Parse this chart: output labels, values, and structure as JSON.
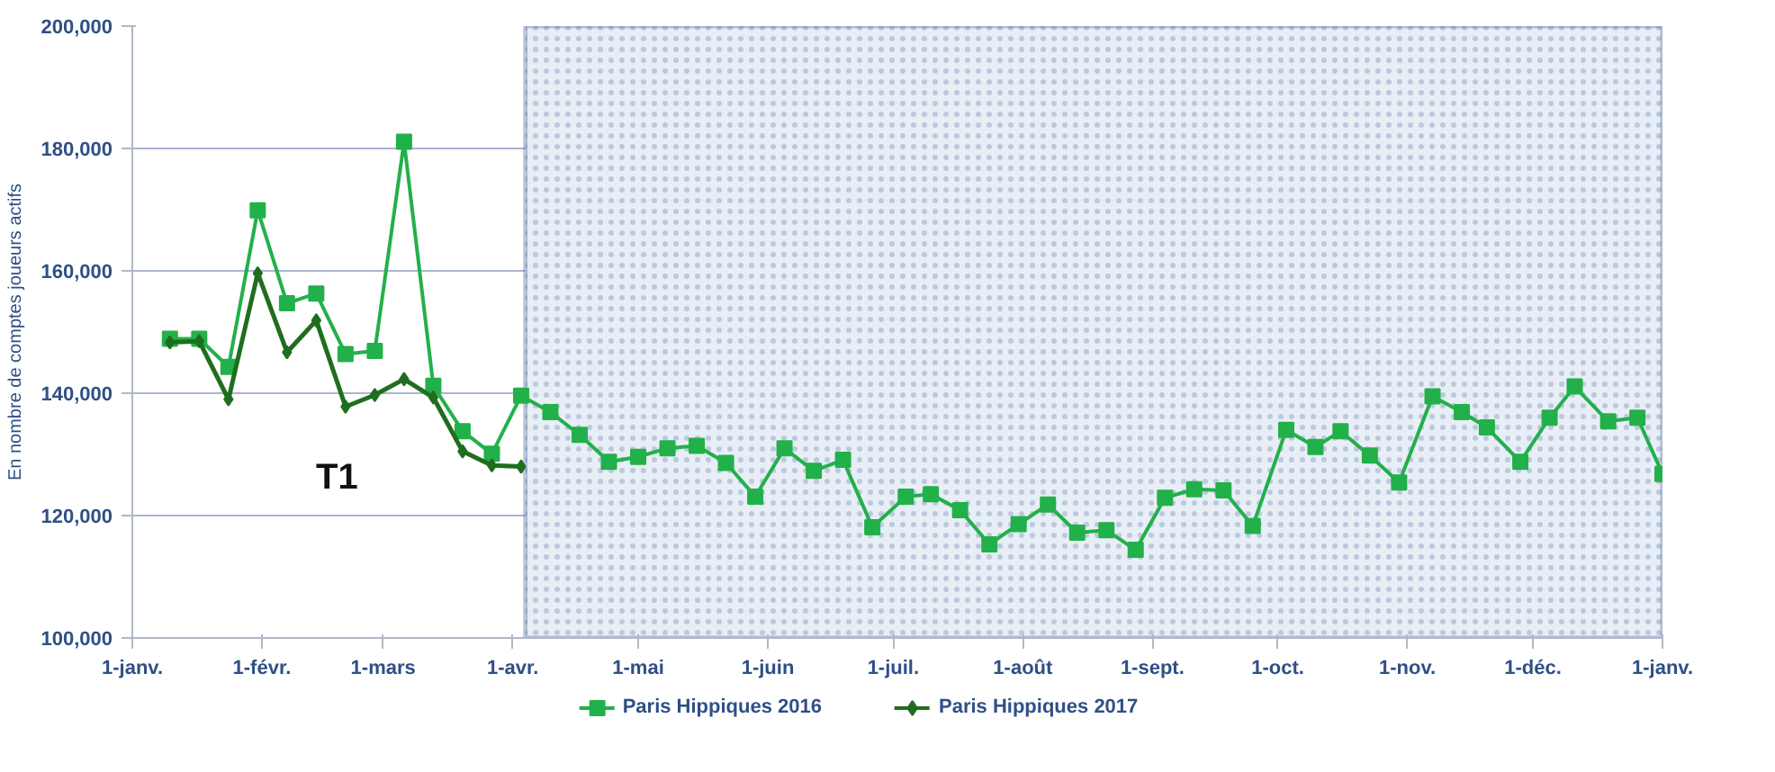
{
  "chart_data": {
    "type": "line",
    "ylabel": "En nombre de comptes joueurs actifs",
    "xlim": [
      "2016-01-01",
      "2017-01-01"
    ],
    "xticks": [
      {
        "value": "2016-01-01",
        "label": "1-janv."
      },
      {
        "value": "2016-02-01",
        "label": "1-févr."
      },
      {
        "value": "2016-03-01",
        "label": "1-mars"
      },
      {
        "value": "2016-04-01",
        "label": "1-avr."
      },
      {
        "value": "2016-05-01",
        "label": "1-mai"
      },
      {
        "value": "2016-06-01",
        "label": "1-juin"
      },
      {
        "value": "2016-07-01",
        "label": "1-juil."
      },
      {
        "value": "2016-08-01",
        "label": "1-août"
      },
      {
        "value": "2016-09-01",
        "label": "1-sept."
      },
      {
        "value": "2016-10-01",
        "label": "1-oct."
      },
      {
        "value": "2016-11-01",
        "label": "1-nov."
      },
      {
        "value": "2016-12-01",
        "label": "1-déc."
      },
      {
        "value": "2017-01-01",
        "label": "1-janv."
      }
    ],
    "ylim": [
      100000,
      200000
    ],
    "yticks": [
      {
        "value": 100000,
        "label": "100,000"
      },
      {
        "value": 120000,
        "label": "120,000"
      },
      {
        "value": 140000,
        "label": "140,000"
      },
      {
        "value": 160000,
        "label": "160,000"
      },
      {
        "value": 180000,
        "label": "180,000"
      },
      {
        "value": 200000,
        "label": "200,000"
      }
    ],
    "grid": "y",
    "legend": "bottom",
    "series": [
      {
        "name": "Paris Hippiques 2016",
        "color": "#22b04b",
        "marker": "square",
        "x": [
          "2016-01-10",
          "2016-01-17",
          "2016-01-24",
          "2016-01-31",
          "2016-02-07",
          "2016-02-14",
          "2016-02-21",
          "2016-02-28",
          "2016-03-06",
          "2016-03-13",
          "2016-03-20",
          "2016-03-27",
          "2016-04-03",
          "2016-04-10",
          "2016-04-17",
          "2016-04-24",
          "2016-05-01",
          "2016-05-08",
          "2016-05-15",
          "2016-05-22",
          "2016-05-29",
          "2016-06-05",
          "2016-06-12",
          "2016-06-19",
          "2016-06-26",
          "2016-07-04",
          "2016-07-10",
          "2016-07-17",
          "2016-07-24",
          "2016-07-31",
          "2016-08-07",
          "2016-08-14",
          "2016-08-21",
          "2016-08-28",
          "2016-09-04",
          "2016-09-11",
          "2016-09-18",
          "2016-09-25",
          "2016-10-03",
          "2016-10-10",
          "2016-10-16",
          "2016-10-23",
          "2016-10-30",
          "2016-11-07",
          "2016-11-14",
          "2016-11-20",
          "2016-11-28",
          "2016-12-05",
          "2016-12-11",
          "2016-12-19",
          "2016-12-26",
          "2017-01-01"
        ],
        "values": [
          148900,
          148900,
          144300,
          169900,
          154700,
          156300,
          146400,
          146900,
          181100,
          141200,
          133800,
          130100,
          139600,
          136900,
          133200,
          128800,
          129600,
          131000,
          131400,
          128600,
          123100,
          131000,
          127300,
          129100,
          118100,
          123100,
          123500,
          120900,
          115300,
          118600,
          121800,
          117200,
          117600,
          114400,
          122900,
          124300,
          124100,
          118300,
          134000,
          131200,
          133800,
          129800,
          125400,
          139500,
          136900,
          134400,
          128800,
          136000,
          141100,
          135400,
          136000,
          126800
        ]
      },
      {
        "name": "Paris Hippiques 2017",
        "color": "#1f6e1f",
        "marker": "diamond",
        "x": [
          "2016-01-10",
          "2016-01-17",
          "2016-01-24",
          "2016-01-31",
          "2016-02-07",
          "2016-02-14",
          "2016-02-21",
          "2016-02-28",
          "2016-03-06",
          "2016-03-13",
          "2016-03-20",
          "2016-03-27",
          "2016-04-03"
        ],
        "values": [
          148300,
          148500,
          139000,
          159600,
          146700,
          151900,
          137800,
          139700,
          142300,
          139300,
          130500,
          128200,
          128000
        ]
      }
    ],
    "bands": [
      {
        "axis": "x",
        "from": "2016-04-04",
        "to": "2017-01-01",
        "color": "#e8eef6"
      }
    ],
    "annotations": [
      "T1"
    ]
  }
}
